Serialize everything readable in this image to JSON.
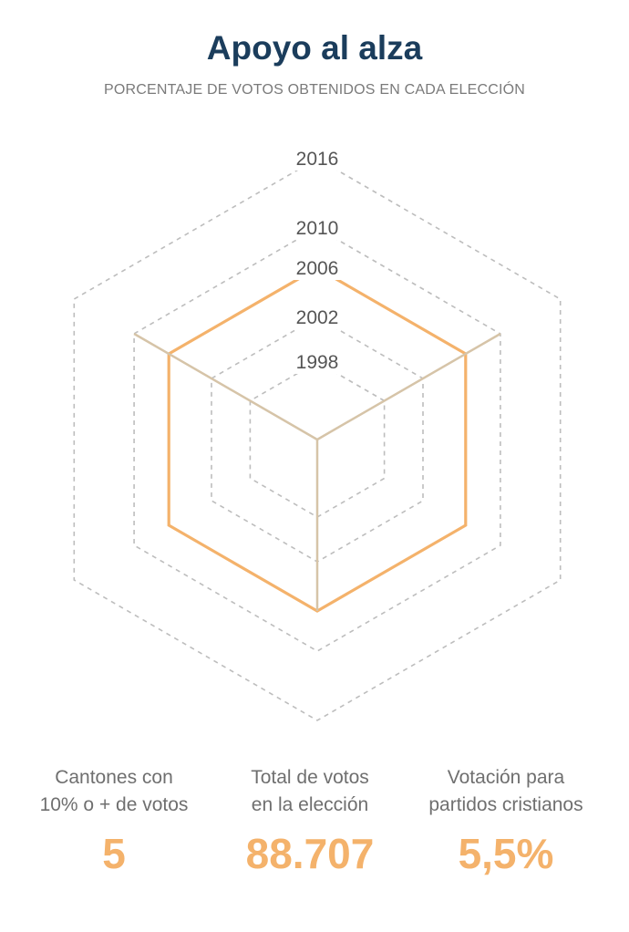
{
  "header": {
    "title": "Apoyo al alza",
    "subtitle": "PORCENTAJE DE VOTOS OBTENIDOS EN CADA ELECCIÓN"
  },
  "chart_data": {
    "type": "radar",
    "rings": [
      "1998",
      "2002",
      "2006",
      "2010",
      "2016"
    ],
    "highlighted_ring": "2006",
    "shape": "hexagon",
    "grid": "dashed",
    "colors": {
      "grid": "#bdbdbd",
      "highlight": "#f4b26b",
      "spokes": "#d6c4a8"
    }
  },
  "stats": [
    {
      "label": "Cantones con\n10% o + de votos",
      "value": "5"
    },
    {
      "label": "Total de votos\nen la elección",
      "value": "88.707"
    },
    {
      "label": "Votación para\npartidos cristianos",
      "value": "5,5%"
    }
  ]
}
